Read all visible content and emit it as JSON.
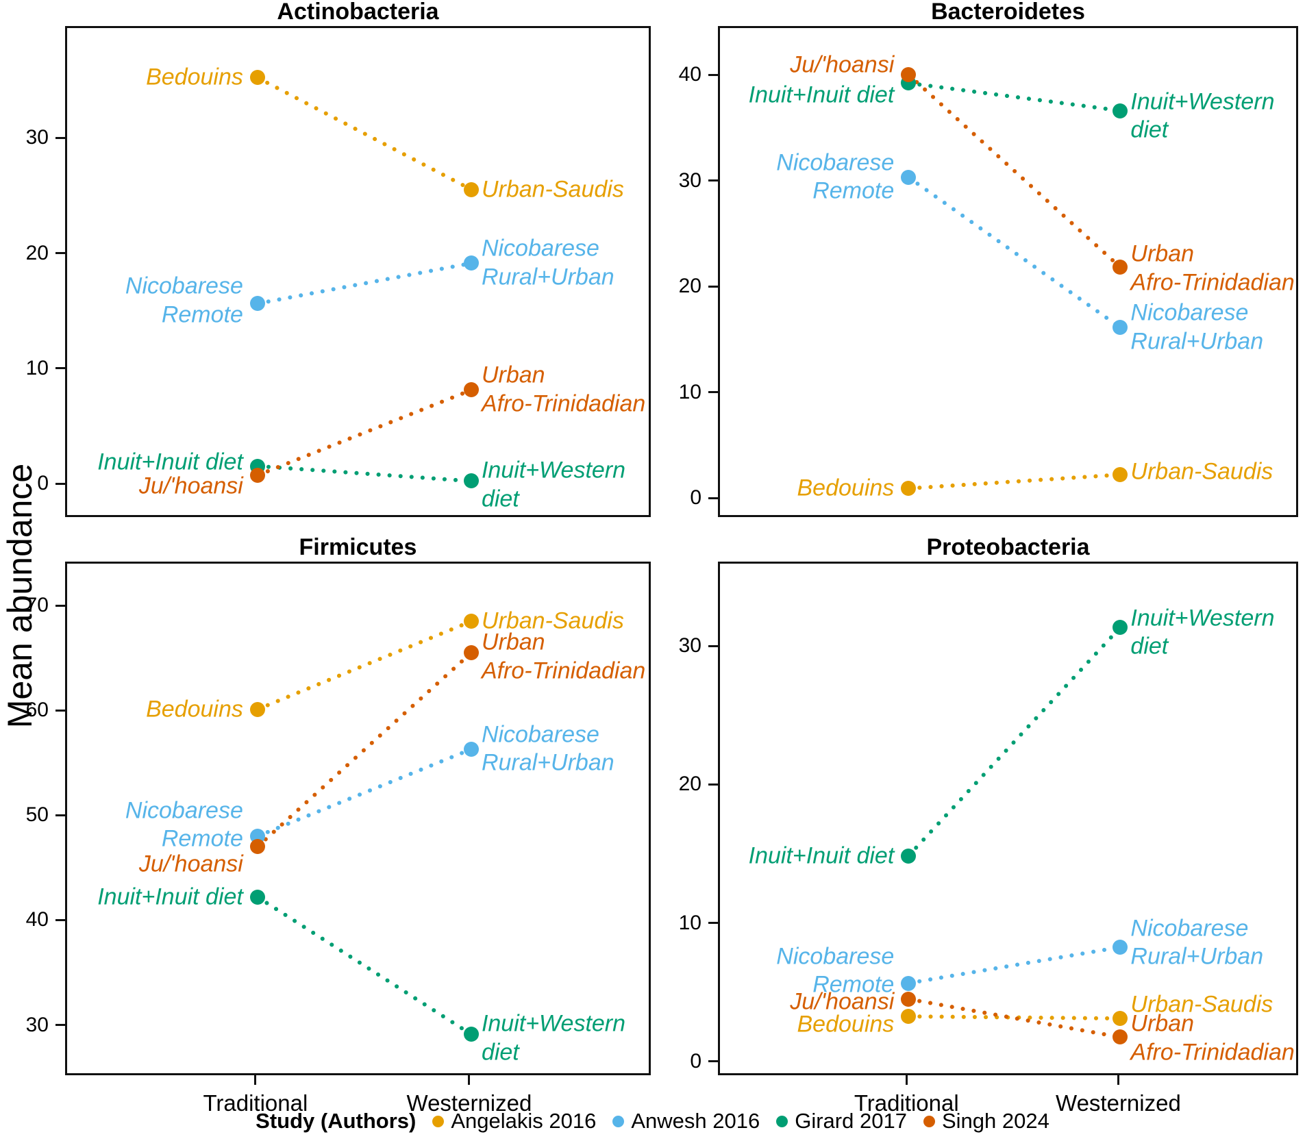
{
  "figure": {
    "y_axis_title": "Mean abundance"
  },
  "x_axis": {
    "categories": [
      "Traditional",
      "Westernized"
    ]
  },
  "legend": {
    "title": "Study (Authors)",
    "entries": [
      {
        "name": "Angelakis 2016",
        "color": "#E69F00"
      },
      {
        "name": "Anwesh 2016",
        "color": "#56B4E9"
      },
      {
        "name": "Girard 2017",
        "color": "#009E73"
      },
      {
        "name": "Singh 2024",
        "color": "#D55E00"
      }
    ]
  },
  "chart_data": [
    {
      "type": "line",
      "title": "Actinobacteria",
      "x_categories": [
        "Traditional",
        "Westernized"
      ],
      "ylim": [
        -2.9,
        39.7
      ],
      "yticks": [
        0,
        10,
        20,
        30
      ],
      "grid": false,
      "series": [
        {
          "study": "Angelakis 2016",
          "color": "#E69F00",
          "points": [
            {
              "x": "Traditional",
              "value": 35.4,
              "label": {
                "lines": [
                  "Bedouins"
                ],
                "side": "left",
                "dy": 0
              }
            },
            {
              "x": "Westernized",
              "value": 25.7,
              "label": {
                "lines": [
                  "Urban-Saudis"
                ],
                "side": "right",
                "dy": 0
              }
            }
          ]
        },
        {
          "study": "Anwesh 2016",
          "color": "#56B4E9",
          "points": [
            {
              "x": "Traditional",
              "value": 15.8,
              "label": {
                "lines": [
                  "Nicobarese",
                  "Remote"
                ],
                "side": "left",
                "dy": -4
              }
            },
            {
              "x": "Westernized",
              "value": 19.3,
              "label": {
                "lines": [
                  "Nicobarese",
                  "Rural+Urban"
                ],
                "side": "right",
                "dy": 0
              }
            }
          ]
        },
        {
          "study": "Girard 2017",
          "color": "#009E73",
          "points": [
            {
              "x": "Traditional",
              "value": 1.7,
              "label": {
                "lines": [
                  "Inuit+Inuit diet"
                ],
                "side": "left",
                "dy": -6
              }
            },
            {
              "x": "Westernized",
              "value": 0.4,
              "label": {
                "lines": [
                  "Inuit+Western",
                  "diet"
                ],
                "side": "right",
                "dy": 6
              }
            }
          ]
        },
        {
          "study": "Singh 2024",
          "color": "#D55E00",
          "points": [
            {
              "x": "Traditional",
              "value": 0.9,
              "label": {
                "lines": [
                  "Ju/'hoansi"
                ],
                "side": "left",
                "dy": 16
              }
            },
            {
              "x": "Westernized",
              "value": 8.3,
              "label": {
                "lines": [
                  "Urban",
                  "Afro-Trinidadian"
                ],
                "side": "right",
                "dy": 0
              }
            }
          ]
        }
      ]
    },
    {
      "type": "line",
      "title": "Bacteroidetes",
      "x_categories": [
        "Traditional",
        "Westernized"
      ],
      "ylim": [
        -1.8,
        44.6
      ],
      "yticks": [
        0,
        10,
        20,
        30,
        40
      ],
      "grid": false,
      "series": [
        {
          "study": "Angelakis 2016",
          "color": "#E69F00",
          "points": [
            {
              "x": "Traditional",
              "value": 1.1,
              "label": {
                "lines": [
                  "Bedouins"
                ],
                "side": "left",
                "dy": 0
              }
            },
            {
              "x": "Westernized",
              "value": 2.4,
              "label": {
                "lines": [
                  "Urban-Saudis"
                ],
                "side": "right",
                "dy": -4
              }
            }
          ]
        },
        {
          "study": "Anwesh 2016",
          "color": "#56B4E9",
          "points": [
            {
              "x": "Traditional",
              "value": 30.5,
              "label": {
                "lines": [
                  "Nicobarese",
                  "Remote"
                ],
                "side": "left",
                "dy": 0
              }
            },
            {
              "x": "Westernized",
              "value": 16.3,
              "label": {
                "lines": [
                  "Nicobarese",
                  "Rural+Urban"
                ],
                "side": "right",
                "dy": 0
              }
            }
          ]
        },
        {
          "study": "Girard 2017",
          "color": "#009E73",
          "points": [
            {
              "x": "Traditional",
              "value": 39.4,
              "label": {
                "lines": [
                  "Inuit+Inuit diet"
                ],
                "side": "left",
                "dy": 18
              }
            },
            {
              "x": "Westernized",
              "value": 36.8,
              "label": {
                "lines": [
                  "Inuit+Western",
                  "diet"
                ],
                "side": "right",
                "dy": 8
              }
            }
          ]
        },
        {
          "study": "Singh 2024",
          "color": "#D55E00",
          "points": [
            {
              "x": "Traditional",
              "value": 40.2,
              "label": {
                "lines": [
                  "Ju/'hoansi"
                ],
                "side": "left",
                "dy": -14
              }
            },
            {
              "x": "Westernized",
              "value": 22.0,
              "label": {
                "lines": [
                  "Urban",
                  "Afro-Trinidadian"
                ],
                "side": "right",
                "dy": 2
              }
            }
          ]
        }
      ]
    },
    {
      "type": "line",
      "title": "Firmicutes",
      "x_categories": [
        "Traditional",
        "Westernized"
      ],
      "ylim": [
        25.2,
        74.2
      ],
      "yticks": [
        30,
        40,
        50,
        60,
        70
      ],
      "grid": false,
      "series": [
        {
          "study": "Angelakis 2016",
          "color": "#E69F00",
          "points": [
            {
              "x": "Traditional",
              "value": 60.3,
              "label": {
                "lines": [
                  "Bedouins"
                ],
                "side": "left",
                "dy": 0
              }
            },
            {
              "x": "Westernized",
              "value": 68.7,
              "label": {
                "lines": [
                  "Urban-Saudis"
                ],
                "side": "right",
                "dy": 0
              }
            }
          ]
        },
        {
          "study": "Anwesh 2016",
          "color": "#56B4E9",
          "points": [
            {
              "x": "Traditional",
              "value": 48.2,
              "label": {
                "lines": [
                  "Nicobarese",
                  "Remote"
                ],
                "side": "left",
                "dy": -16
              }
            },
            {
              "x": "Westernized",
              "value": 56.5,
              "label": {
                "lines": [
                  "Nicobarese",
                  "Rural+Urban"
                ],
                "side": "right",
                "dy": 0
              }
            }
          ]
        },
        {
          "study": "Girard 2017",
          "color": "#009E73",
          "points": [
            {
              "x": "Traditional",
              "value": 42.4,
              "label": {
                "lines": [
                  "Inuit+Inuit diet"
                ],
                "side": "left",
                "dy": 0
              }
            },
            {
              "x": "Westernized",
              "value": 29.3,
              "label": {
                "lines": [
                  "Inuit+Western",
                  "diet"
                ],
                "side": "right",
                "dy": 6
              }
            }
          ]
        },
        {
          "study": "Singh 2024",
          "color": "#D55E00",
          "points": [
            {
              "x": "Traditional",
              "value": 47.2,
              "label": {
                "lines": [
                  "Ju/'hoansi"
                ],
                "side": "left",
                "dy": 26
              }
            },
            {
              "x": "Westernized",
              "value": 65.7,
              "label": {
                "lines": [
                  "Urban",
                  "Afro-Trinidadian"
                ],
                "side": "right",
                "dy": 6
              }
            }
          ]
        }
      ]
    },
    {
      "type": "line",
      "title": "Proteobacteria",
      "x_categories": [
        "Traditional",
        "Westernized"
      ],
      "ylim": [
        -1.0,
        36.1
      ],
      "yticks": [
        0,
        10,
        20,
        30
      ],
      "grid": false,
      "series": [
        {
          "study": "Angelakis 2016",
          "color": "#E69F00",
          "points": [
            {
              "x": "Traditional",
              "value": 3.4,
              "label": {
                "lines": [
                  "Bedouins"
                ],
                "side": "left",
                "dy": 12
              }
            },
            {
              "x": "Westernized",
              "value": 3.25,
              "label": {
                "lines": [
                  "Urban-Saudis"
                ],
                "side": "right",
                "dy": -20
              }
            }
          ]
        },
        {
          "study": "Anwesh 2016",
          "color": "#56B4E9",
          "points": [
            {
              "x": "Traditional",
              "value": 5.8,
              "label": {
                "lines": [
                  "Nicobarese",
                  "Remote"
                ],
                "side": "left",
                "dy": -18
              }
            },
            {
              "x": "Westernized",
              "value": 8.4,
              "label": {
                "lines": [
                  "Nicobarese",
                  "Rural+Urban"
                ],
                "side": "right",
                "dy": -6
              }
            }
          ]
        },
        {
          "study": "Girard 2017",
          "color": "#009E73",
          "points": [
            {
              "x": "Traditional",
              "value": 15.0,
              "label": {
                "lines": [
                  "Inuit+Inuit diet"
                ],
                "side": "left",
                "dy": 0
              }
            },
            {
              "x": "Westernized",
              "value": 31.5,
              "label": {
                "lines": [
                  "Inuit+Western",
                  "diet"
                ],
                "side": "right",
                "dy": 8
              }
            }
          ]
        },
        {
          "study": "Singh 2024",
          "color": "#D55E00",
          "points": [
            {
              "x": "Traditional",
              "value": 4.65,
              "label": {
                "lines": [
                  "Ju/'hoansi"
                ],
                "side": "left",
                "dy": 4
              }
            },
            {
              "x": "Westernized",
              "value": 1.9,
              "label": {
                "lines": [
                  "Urban",
                  "Afro-Trinidadian"
                ],
                "side": "right",
                "dy": 2
              }
            }
          ]
        }
      ]
    }
  ]
}
